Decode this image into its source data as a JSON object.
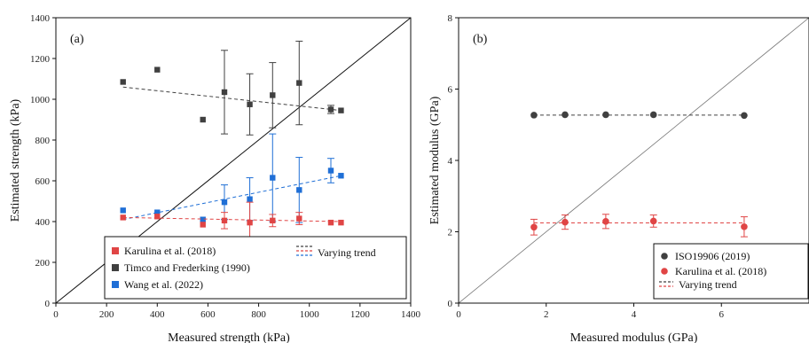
{
  "colors": {
    "timco": "#404040",
    "karulina": "#e04545",
    "wang": "#1f6fd6",
    "iso": "#404040",
    "axis": "#111111"
  },
  "chart_data": [
    {
      "type": "scatter",
      "panel_label": "(a)",
      "xlabel": "Measured strength (kPa)",
      "ylabel": "Estimated strength (kPa)",
      "xlim": [
        0,
        1400
      ],
      "ylim": [
        0,
        1400
      ],
      "xticks": [
        0,
        200,
        400,
        600,
        800,
        1000,
        1200,
        1400
      ],
      "yticks": [
        0,
        200,
        400,
        600,
        800,
        1000,
        1200,
        1400
      ],
      "reference_line": "y = x",
      "legend_position": "bottom-right",
      "legend": {
        "entries": [
          "Karulina et al. (2018)",
          "Timco and Frederking (1990)",
          "Wang et al. (2022)"
        ],
        "trend_label": "Varying trend"
      },
      "series": [
        {
          "key": "timco",
          "marker": "square",
          "x": [
            265,
            400,
            580,
            665,
            765,
            855,
            960,
            1085,
            1125
          ],
          "y": [
            1085,
            1145,
            900,
            1035,
            975,
            1020,
            1080,
            950,
            945
          ],
          "err": [
            0,
            0,
            0,
            205,
            150,
            160,
            205,
            20,
            0
          ],
          "trend": [
            [
              265,
              1060
            ],
            [
              1125,
              945
            ]
          ]
        },
        {
          "key": "wang",
          "marker": "square",
          "x": [
            265,
            400,
            580,
            665,
            765,
            855,
            960,
            1085,
            1125
          ],
          "y": [
            455,
            445,
            410,
            495,
            510,
            615,
            555,
            650,
            625
          ],
          "err": [
            0,
            0,
            0,
            85,
            105,
            215,
            160,
            60,
            0
          ],
          "trend": [
            [
              265,
              410
            ],
            [
              1125,
              625
            ]
          ]
        },
        {
          "key": "karulina",
          "marker": "square",
          "x": [
            265,
            400,
            580,
            665,
            765,
            855,
            960,
            1085,
            1125
          ],
          "y": [
            420,
            425,
            385,
            405,
            395,
            405,
            415,
            395,
            395
          ],
          "err": [
            0,
            0,
            0,
            40,
            100,
            30,
            30,
            0,
            0
          ],
          "trend": [
            [
              265,
              420
            ],
            [
              1125,
              400
            ]
          ]
        }
      ]
    },
    {
      "type": "scatter",
      "panel_label": "(b)",
      "xlabel": "Measured modulus (GPa)",
      "ylabel": "Estimated modulus (GPa)",
      "xlim": [
        0,
        8
      ],
      "ylim": [
        0,
        8
      ],
      "xticks": [
        0,
        2,
        4,
        6
      ],
      "yticks": [
        0,
        2,
        4,
        6,
        8
      ],
      "reference_line": "y = x",
      "legend_position": "bottom-right",
      "legend": {
        "entries": [
          "ISO19906 (2019)",
          "Karulina et al. (2018)"
        ],
        "trend_label": "Varying trend"
      },
      "series": [
        {
          "key": "iso",
          "marker": "circle",
          "x": [
            1.72,
            2.43,
            3.36,
            4.45,
            6.52
          ],
          "y": [
            5.27,
            5.28,
            5.28,
            5.28,
            5.26
          ],
          "err": [
            0,
            0,
            0,
            0,
            0
          ],
          "trend": [
            [
              1.72,
              5.27
            ],
            [
              6.52,
              5.27
            ]
          ]
        },
        {
          "key": "karulina",
          "marker": "circle",
          "x": [
            1.72,
            2.43,
            3.36,
            4.45,
            6.52
          ],
          "y": [
            2.13,
            2.27,
            2.29,
            2.3,
            2.14
          ],
          "err": [
            0.22,
            0.2,
            0.2,
            0.17,
            0.28
          ],
          "trend": [
            [
              1.72,
              2.25
            ],
            [
              6.52,
              2.25
            ]
          ]
        }
      ]
    }
  ]
}
